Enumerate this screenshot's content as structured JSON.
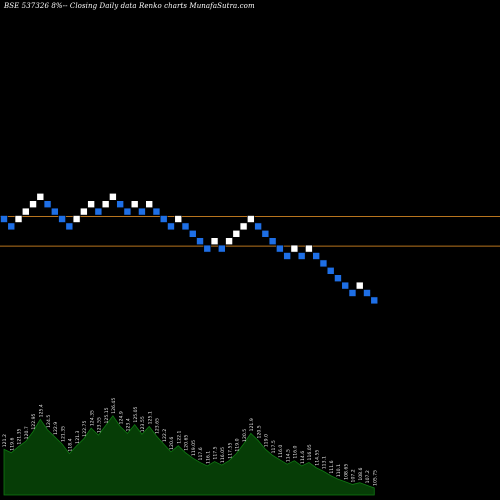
{
  "header": "BSE 537326  8%-- Closing Daily data  Renko  charts MunafaSutra.com",
  "colors": {
    "background": "#000000",
    "brick_up": "#ffffff",
    "brick_down": "#1e6fe6",
    "reference_line": "#b8741e",
    "volume_fill": "#063d06",
    "volume_line": "#0f7a12",
    "volume_label": "#e8e8e8"
  },
  "chart_data": {
    "type": "renko",
    "title": "BSE 537326  8%-- Closing Daily data  Renko  charts MunafaSutra.com",
    "bricks": [
      {
        "level": 6,
        "dir": "down"
      },
      {
        "level": 5,
        "dir": "down"
      },
      {
        "level": 6,
        "dir": "up"
      },
      {
        "level": 7,
        "dir": "up"
      },
      {
        "level": 8,
        "dir": "up"
      },
      {
        "level": 9,
        "dir": "up"
      },
      {
        "level": 8,
        "dir": "down"
      },
      {
        "level": 7,
        "dir": "down"
      },
      {
        "level": 6,
        "dir": "down"
      },
      {
        "level": 5,
        "dir": "down"
      },
      {
        "level": 6,
        "dir": "up"
      },
      {
        "level": 7,
        "dir": "up"
      },
      {
        "level": 8,
        "dir": "up"
      },
      {
        "level": 7,
        "dir": "down"
      },
      {
        "level": 8,
        "dir": "up"
      },
      {
        "level": 9,
        "dir": "up"
      },
      {
        "level": 8,
        "dir": "down"
      },
      {
        "level": 7,
        "dir": "down"
      },
      {
        "level": 8,
        "dir": "up"
      },
      {
        "level": 7,
        "dir": "down"
      },
      {
        "level": 8,
        "dir": "up"
      },
      {
        "level": 7,
        "dir": "down"
      },
      {
        "level": 6,
        "dir": "down"
      },
      {
        "level": 5,
        "dir": "down"
      },
      {
        "level": 6,
        "dir": "up"
      },
      {
        "level": 5,
        "dir": "down"
      },
      {
        "level": 4,
        "dir": "down"
      },
      {
        "level": 3,
        "dir": "down"
      },
      {
        "level": 2,
        "dir": "down"
      },
      {
        "level": 3,
        "dir": "up"
      },
      {
        "level": 2,
        "dir": "down"
      },
      {
        "level": 3,
        "dir": "up"
      },
      {
        "level": 4,
        "dir": "up"
      },
      {
        "level": 5,
        "dir": "up"
      },
      {
        "level": 6,
        "dir": "up"
      },
      {
        "level": 5,
        "dir": "down"
      },
      {
        "level": 4,
        "dir": "down"
      },
      {
        "level": 3,
        "dir": "down"
      },
      {
        "level": 2,
        "dir": "down"
      },
      {
        "level": 1,
        "dir": "down"
      },
      {
        "level": 2,
        "dir": "up"
      },
      {
        "level": 1,
        "dir": "down"
      },
      {
        "level": 2,
        "dir": "up"
      },
      {
        "level": 1,
        "dir": "down"
      },
      {
        "level": 0,
        "dir": "down"
      },
      {
        "level": -1,
        "dir": "down"
      },
      {
        "level": -2,
        "dir": "down"
      },
      {
        "level": -3,
        "dir": "down"
      },
      {
        "level": -4,
        "dir": "down"
      },
      {
        "level": -3,
        "dir": "up"
      },
      {
        "level": -4,
        "dir": "down"
      },
      {
        "level": -5,
        "dir": "down"
      }
    ],
    "reference_lines": [
      {
        "level": 6
      },
      {
        "level": 2
      }
    ],
    "volume_labels": [
      "121.2",
      "119.6",
      "121.35",
      "120.7",
      "122.95",
      "125.4",
      "124.5",
      "122.9",
      "121.35",
      "118.4",
      "121.3",
      "122.75",
      "124.35",
      "123.55",
      "125.15",
      "126.45",
      "124.9",
      "123.4",
      "125.05",
      "123.55",
      "125.1",
      "123.65",
      "122.2",
      "120.6",
      "122.1",
      "120.65",
      "119.05",
      "117.6",
      "116.1",
      "117.5",
      "116.05",
      "117.55",
      "119.0",
      "120.5",
      "121.9",
      "120.5",
      "119.0",
      "117.5",
      "116.0",
      "114.5",
      "116.0",
      "114.6",
      "116.05",
      "114.55",
      "113.1",
      "111.6",
      "110.1",
      "108.65",
      "107.2",
      "108.6",
      "107.2",
      "105.75"
    ],
    "volume_levels": [
      0.52,
      0.48,
      0.55,
      0.61,
      0.72,
      0.86,
      0.74,
      0.66,
      0.58,
      0.47,
      0.56,
      0.64,
      0.76,
      0.68,
      0.79,
      0.9,
      0.78,
      0.7,
      0.8,
      0.69,
      0.78,
      0.67,
      0.58,
      0.49,
      0.56,
      0.48,
      0.42,
      0.37,
      0.33,
      0.38,
      0.34,
      0.39,
      0.47,
      0.58,
      0.7,
      0.62,
      0.52,
      0.45,
      0.4,
      0.35,
      0.39,
      0.33,
      0.37,
      0.31,
      0.27,
      0.22,
      0.18,
      0.15,
      0.12,
      0.14,
      0.11,
      0.08
    ]
  }
}
